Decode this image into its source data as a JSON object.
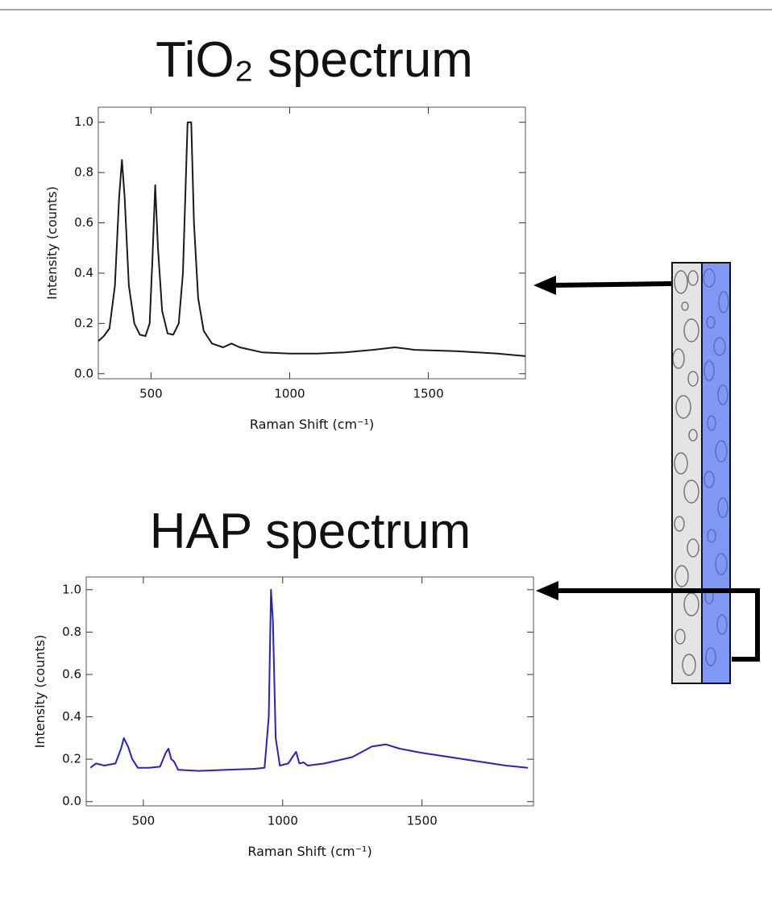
{
  "chart_data": [
    {
      "type": "line",
      "title": "TiO₂ spectrum",
      "x_label": "Raman Shift (cm⁻¹)",
      "y_label": "Intensity (counts)",
      "color": "#1a1a1a",
      "x": [
        310,
        330,
        350,
        370,
        385,
        395,
        405,
        420,
        440,
        460,
        480,
        495,
        505,
        515,
        525,
        540,
        560,
        580,
        600,
        615,
        625,
        632,
        645,
        655,
        670,
        690,
        720,
        760,
        790,
        820,
        900,
        1000,
        1100,
        1200,
        1300,
        1380,
        1450,
        1600,
        1750,
        1850
      ],
      "values": [
        0.13,
        0.15,
        0.18,
        0.35,
        0.7,
        0.85,
        0.7,
        0.35,
        0.2,
        0.155,
        0.15,
        0.2,
        0.45,
        0.75,
        0.5,
        0.25,
        0.16,
        0.155,
        0.2,
        0.4,
        0.75,
        1.0,
        1.0,
        0.6,
        0.3,
        0.17,
        0.12,
        0.105,
        0.12,
        0.105,
        0.085,
        0.08,
        0.08,
        0.085,
        0.095,
        0.105,
        0.095,
        0.09,
        0.08,
        0.07
      ],
      "xlim": [
        310,
        1850
      ],
      "xticks": [
        500,
        1000,
        1500
      ],
      "ylim": [
        -0.02,
        1.06
      ],
      "yticks": [
        {
          "value": 0,
          "label": "0.0"
        },
        0.2,
        0.4,
        0.6,
        0.8,
        {
          "value": 1,
          "label": "1.0"
        }
      ]
    },
    {
      "type": "line",
      "title": "HAP spectrum",
      "x_label": "Raman Shift (cm⁻¹)",
      "y_label": "Intensity (counts)",
      "color": "#2323c8",
      "x": [
        310,
        330,
        360,
        400,
        420,
        430,
        445,
        460,
        480,
        520,
        560,
        580,
        590,
        600,
        610,
        625,
        700,
        800,
        900,
        935,
        950,
        958,
        965,
        975,
        990,
        1020,
        1040,
        1048,
        1060,
        1075,
        1090,
        1150,
        1250,
        1320,
        1370,
        1420,
        1500,
        1600,
        1700,
        1800,
        1880
      ],
      "values": [
        0.16,
        0.18,
        0.17,
        0.18,
        0.25,
        0.3,
        0.26,
        0.2,
        0.16,
        0.16,
        0.165,
        0.23,
        0.25,
        0.2,
        0.19,
        0.15,
        0.145,
        0.15,
        0.155,
        0.16,
        0.4,
        1.0,
        0.85,
        0.3,
        0.17,
        0.18,
        0.22,
        0.235,
        0.18,
        0.185,
        0.17,
        0.18,
        0.21,
        0.26,
        0.27,
        0.25,
        0.23,
        0.21,
        0.19,
        0.17,
        0.16
      ],
      "xlim": [
        295,
        1900
      ],
      "xticks": [
        500,
        1000,
        1500
      ],
      "ylim": [
        -0.02,
        1.06
      ],
      "yticks": [
        {
          "value": 0,
          "label": "0.0"
        },
        0.2,
        0.4,
        0.6,
        0.8,
        {
          "value": 1,
          "label": "1.0"
        }
      ]
    }
  ]
}
